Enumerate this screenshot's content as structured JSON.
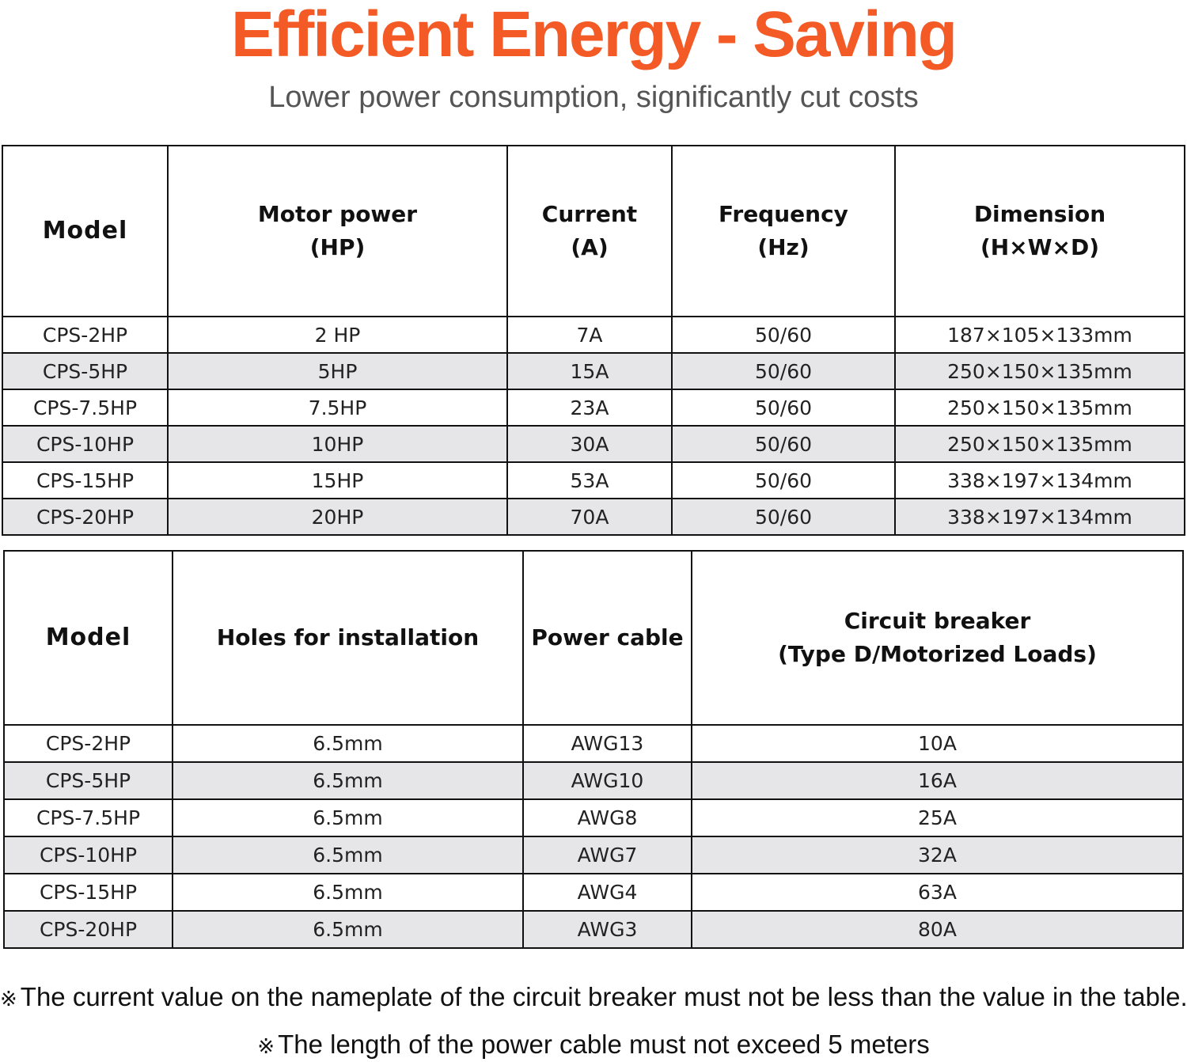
{
  "title": "Efficient Energy - Saving",
  "subtitle": "Lower power consumption, significantly cut costs",
  "table1": {
    "headers": [
      {
        "line1": "Model",
        "line2": ""
      },
      {
        "line1": "Motor power",
        "line2": "(HP)"
      },
      {
        "line1": "Current",
        "line2": "(A)"
      },
      {
        "line1": "Frequency",
        "line2": "(Hz)"
      },
      {
        "line1": "Dimension",
        "line2": "(H×W×D)"
      }
    ],
    "rows": [
      [
        "CPS-2HP",
        "2 HP",
        "7A",
        "50/60",
        "187×105×133mm"
      ],
      [
        "CPS-5HP",
        "5HP",
        "15A",
        "50/60",
        "250×150×135mm"
      ],
      [
        "CPS-7.5HP",
        "7.5HP",
        "23A",
        "50/60",
        "250×150×135mm"
      ],
      [
        "CPS-10HP",
        "10HP",
        "30A",
        "50/60",
        "250×150×135mm"
      ],
      [
        "CPS-15HP",
        "15HP",
        "53A",
        "50/60",
        "338×197×134mm"
      ],
      [
        "CPS-20HP",
        "20HP",
        "70A",
        "50/60",
        "338×197×134mm"
      ]
    ]
  },
  "table2": {
    "headers": [
      {
        "line1": "Model",
        "line2": ""
      },
      {
        "line1": "Holes for installation",
        "line2": ""
      },
      {
        "line1": "Power cable",
        "line2": ""
      },
      {
        "line1": "Circuit breaker",
        "line2": "(Type D/Motorized Loads)"
      }
    ],
    "rows": [
      [
        "CPS-2HP",
        "6.5mm",
        "AWG13",
        "10A"
      ],
      [
        "CPS-5HP",
        "6.5mm",
        "AWG10",
        "16A"
      ],
      [
        "CPS-7.5HP",
        "6.5mm",
        "AWG8",
        "25A"
      ],
      [
        "CPS-10HP",
        "6.5mm",
        "AWG7",
        "32A"
      ],
      [
        "CPS-15HP",
        "6.5mm",
        "AWG4",
        "63A"
      ],
      [
        "CPS-20HP",
        "6.5mm",
        "AWG3",
        "80A"
      ]
    ]
  },
  "notes": {
    "mark": "※",
    "note1": "The current value on the nameplate of the circuit breaker must not be less than the value in the table.",
    "note2": "The length of the power cable must not exceed 5 meters"
  },
  "colors": {
    "title": "#f45a25",
    "subtitle": "#555555",
    "alt_row": "#e6e6e9",
    "border": "#111111"
  }
}
